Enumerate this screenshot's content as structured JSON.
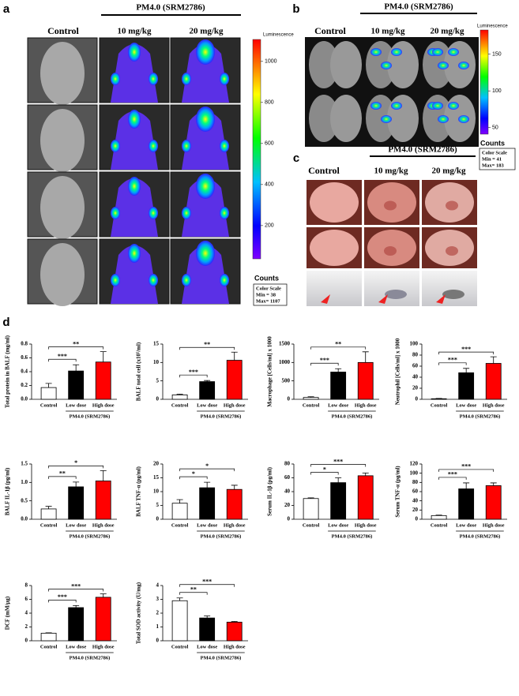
{
  "panels": {
    "a": {
      "label": "a",
      "control": "Control",
      "group": "PM4.0 (SRM2786)",
      "doses": [
        "10 mg/kg",
        "20 mg/kg"
      ],
      "scale_title": "Luminescence",
      "scale_ticks": [
        200,
        400,
        600,
        800,
        1000
      ],
      "counts": "Counts",
      "scale_box": "Color Scale",
      "min": {
        "value": 38,
        "label": "Min = 38"
      },
      "max": {
        "value": 1107,
        "label": "Max= 1107"
      }
    },
    "b": {
      "label": "b",
      "control": "Control",
      "group": "PM4.0 (SRM2786)",
      "doses": [
        "10 mg/kg",
        "20 mg/kg"
      ],
      "scale_title": "Luminescence",
      "scale_ticks": [
        50,
        100,
        150
      ],
      "counts": "Counts",
      "scale_box": "Color Scale",
      "min": {
        "value": 41,
        "label": "Min = 41"
      },
      "max": {
        "value": 183,
        "label": "Max= 183"
      }
    },
    "c": {
      "label": "c",
      "control": "Control",
      "group": "PM4.0 (SRM2786)",
      "doses": [
        "10 mg/kg",
        "20 mg/kg"
      ]
    },
    "d": {
      "label": "d"
    }
  },
  "chart_data": [
    {
      "type": "bar",
      "y_label": "Total protein in BALF (mg/ml)",
      "categories": [
        "Control",
        "Low dose",
        "High dose"
      ],
      "group": "PM4.0 (SRM2786)",
      "colors": [
        "#ffffff",
        "#000000",
        "#ff0000"
      ],
      "values": [
        0.17,
        0.41,
        0.54
      ],
      "errors": [
        0.06,
        0.09,
        0.15
      ],
      "ylim": [
        0,
        0.8
      ],
      "yticks": [
        {
          "value": 0,
          "label": "0.0"
        },
        0.2,
        0.4,
        0.6,
        0.8
      ],
      "significance": [
        "***",
        "**"
      ]
    },
    {
      "type": "bar",
      "y_label": "BALF total cell (x10⁵/ml)",
      "categories": [
        "Control",
        "Low dose",
        "High dose"
      ],
      "group": "PM4.0 (SRM2786)",
      "colors": [
        "#ffffff",
        "#000000",
        "#ff0000"
      ],
      "values": [
        1.2,
        4.8,
        10.6
      ],
      "errors": [
        0.2,
        0.3,
        2.2
      ],
      "ylim": [
        0,
        15
      ],
      "yticks": [
        0,
        5,
        10,
        15
      ],
      "significance": [
        "***",
        "**"
      ]
    },
    {
      "type": "bar",
      "y_label": "Macrophage [Cells/ml] x 1000",
      "categories": [
        "Control",
        "Low dose",
        "High dose"
      ],
      "group": "PM4.0 (SRM2786)",
      "colors": [
        "#ffffff",
        "#000000",
        "#ff0000"
      ],
      "values": [
        50,
        740,
        1000
      ],
      "errors": [
        20,
        90,
        290
      ],
      "ylim": [
        0,
        1500
      ],
      "yticks": [
        0,
        500,
        1000,
        1500
      ],
      "significance": [
        "***",
        "**"
      ]
    },
    {
      "type": "bar",
      "y_label": "Neutrophil [Cells/ml] x 1000",
      "categories": [
        "Control",
        "Low dose",
        "High dose"
      ],
      "group": "PM4.0 (SRM2786)",
      "colors": [
        "#ffffff",
        "#000000",
        "#ff0000"
      ],
      "values": [
        1,
        48,
        65
      ],
      "errors": [
        0.5,
        8,
        12
      ],
      "ylim": [
        0,
        100
      ],
      "yticks": [
        0,
        20,
        40,
        60,
        80,
        100
      ],
      "significance": [
        "***",
        "***"
      ]
    },
    {
      "type": "bar",
      "y_label": "BALF IL-1β (pg/ml)",
      "categories": [
        "Control",
        "Low dose",
        "High dose"
      ],
      "group": "PM4.0 (SRM2786)",
      "colors": [
        "#ffffff",
        "#000000",
        "#ff0000"
      ],
      "values": [
        0.28,
        0.88,
        1.04
      ],
      "errors": [
        0.07,
        0.13,
        0.28
      ],
      "ylim": [
        0,
        1.5
      ],
      "yticks": [
        {
          "value": 0,
          "label": "0.0"
        },
        0.5,
        {
          "value": 1,
          "label": "1.0"
        },
        1.5
      ],
      "significance": [
        "**",
        "*"
      ]
    },
    {
      "type": "bar",
      "y_label": "BALF TNF-α (pg/ml)",
      "categories": [
        "Control",
        "Low dose",
        "High dose"
      ],
      "group": "PM4.0 (SRM2786)",
      "colors": [
        "#ffffff",
        "#000000",
        "#ff0000"
      ],
      "values": [
        5.8,
        11.4,
        10.8
      ],
      "errors": [
        1.3,
        2,
        1.5
      ],
      "ylim": [
        0,
        20
      ],
      "yticks": [
        0,
        5,
        10,
        15,
        20
      ],
      "significance": [
        "*",
        "*"
      ]
    },
    {
      "type": "bar",
      "y_label": "Serum IL-1β (pg/ml)",
      "categories": [
        "Control",
        "Low dose",
        "High dose"
      ],
      "group": "PM4.0 (SRM2786)",
      "colors": [
        "#ffffff",
        "#000000",
        "#ff0000"
      ],
      "values": [
        30,
        53,
        63
      ],
      "errors": [
        1,
        7,
        4
      ],
      "ylim": [
        0,
        80
      ],
      "yticks": [
        0,
        20,
        40,
        60,
        80
      ],
      "significance": [
        "*",
        "***"
      ]
    },
    {
      "type": "bar",
      "y_label": "Serum TNF-α (pg/ml)",
      "categories": [
        "Control",
        "Low dose",
        "High dose"
      ],
      "group": "PM4.0 (SRM2786)",
      "colors": [
        "#ffffff",
        "#000000",
        "#ff0000"
      ],
      "values": [
        8,
        66,
        73
      ],
      "errors": [
        1,
        13,
        6
      ],
      "ylim": [
        0,
        120
      ],
      "yticks": [
        0,
        20,
        40,
        60,
        80,
        100,
        120
      ],
      "significance": [
        "***",
        "***"
      ]
    },
    {
      "type": "bar",
      "y_label": "DCF (mM/μg)",
      "categories": [
        "Control",
        "Low dose",
        "High dose"
      ],
      "group": "PM4.0 (SRM2786)",
      "colors": [
        "#ffffff",
        "#000000",
        "#ff0000"
      ],
      "values": [
        1.1,
        4.8,
        6.3
      ],
      "errors": [
        0.05,
        0.3,
        0.5
      ],
      "ylim": [
        0,
        8
      ],
      "yticks": [
        0,
        2,
        4,
        6,
        8
      ],
      "significance": [
        "***",
        "***"
      ]
    },
    {
      "type": "bar",
      "y_label": "Total SOD activity (U/mg)",
      "categories": [
        "Control",
        "Low dose",
        "High dose"
      ],
      "group": "PM4.0 (SRM2786)",
      "colors": [
        "#ffffff",
        "#000000",
        "#ff0000"
      ],
      "values": [
        2.9,
        1.65,
        1.35
      ],
      "errors": [
        0.2,
        0.15,
        0.05
      ],
      "ylim": [
        0,
        4
      ],
      "yticks": [
        0,
        1,
        2,
        3,
        4
      ],
      "significance": [
        "**",
        "***"
      ]
    }
  ]
}
